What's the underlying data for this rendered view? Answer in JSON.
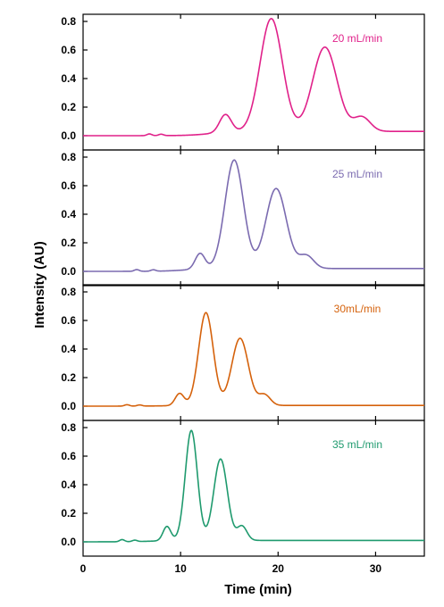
{
  "chart_data": {
    "type": "line",
    "xlabel": "Time (min)",
    "ylabel": "Intensity (AU)",
    "xlim": [
      0,
      35
    ],
    "ylim": [
      -0.1,
      0.85
    ],
    "x_ticks": [
      0,
      10,
      20,
      30
    ],
    "y_ticks": [
      0.0,
      0.2,
      0.4,
      0.6,
      0.8
    ],
    "grid": false,
    "legend": "top-right label inside each panel",
    "panels": [
      {
        "name": "20 mL/min",
        "color": "#e0218a",
        "baseline": 0.0,
        "tail": 0.03,
        "peaks": [
          {
            "t": 14.6,
            "h": 0.125,
            "w": 0.6
          },
          {
            "t": 19.3,
            "h": 0.79,
            "w": 1.15
          },
          {
            "t": 24.8,
            "h": 0.59,
            "w": 1.25
          },
          {
            "t": 28.6,
            "h": 0.1,
            "w": 0.85
          }
        ],
        "noise": [
          {
            "t": 6.8,
            "h": 0.012
          },
          {
            "t": 8.0,
            "h": 0.01
          }
        ]
      },
      {
        "name": "25 mL/min",
        "color": "#7b6bb0",
        "baseline": 0.0,
        "tail": 0.02,
        "peaks": [
          {
            "t": 12.0,
            "h": 0.11,
            "w": 0.5
          },
          {
            "t": 15.5,
            "h": 0.76,
            "w": 0.95
          },
          {
            "t": 19.8,
            "h": 0.56,
            "w": 1.05
          },
          {
            "t": 22.9,
            "h": 0.09,
            "w": 0.75
          }
        ],
        "noise": [
          {
            "t": 5.5,
            "h": 0.012
          },
          {
            "t": 7.2,
            "h": 0.01
          }
        ]
      },
      {
        "name": "30mL/min",
        "color": "#d5620c",
        "baseline": 0.0,
        "tail": 0.005,
        "peaks": [
          {
            "t": 9.9,
            "h": 0.085,
            "w": 0.45
          },
          {
            "t": 12.6,
            "h": 0.65,
            "w": 0.75
          },
          {
            "t": 16.1,
            "h": 0.47,
            "w": 0.85
          },
          {
            "t": 18.6,
            "h": 0.075,
            "w": 0.6
          }
        ],
        "noise": [
          {
            "t": 4.5,
            "h": 0.01
          },
          {
            "t": 5.8,
            "h": 0.008
          }
        ]
      },
      {
        "name": "35 mL/min",
        "color": "#1f9a6e",
        "baseline": 0.0,
        "tail": 0.01,
        "peaks": [
          {
            "t": 8.6,
            "h": 0.1,
            "w": 0.4
          },
          {
            "t": 11.1,
            "h": 0.77,
            "w": 0.62
          },
          {
            "t": 14.1,
            "h": 0.57,
            "w": 0.7
          },
          {
            "t": 16.3,
            "h": 0.1,
            "w": 0.5
          }
        ],
        "noise": [
          {
            "t": 4.0,
            "h": 0.015
          },
          {
            "t": 5.3,
            "h": 0.01
          }
        ]
      }
    ]
  }
}
